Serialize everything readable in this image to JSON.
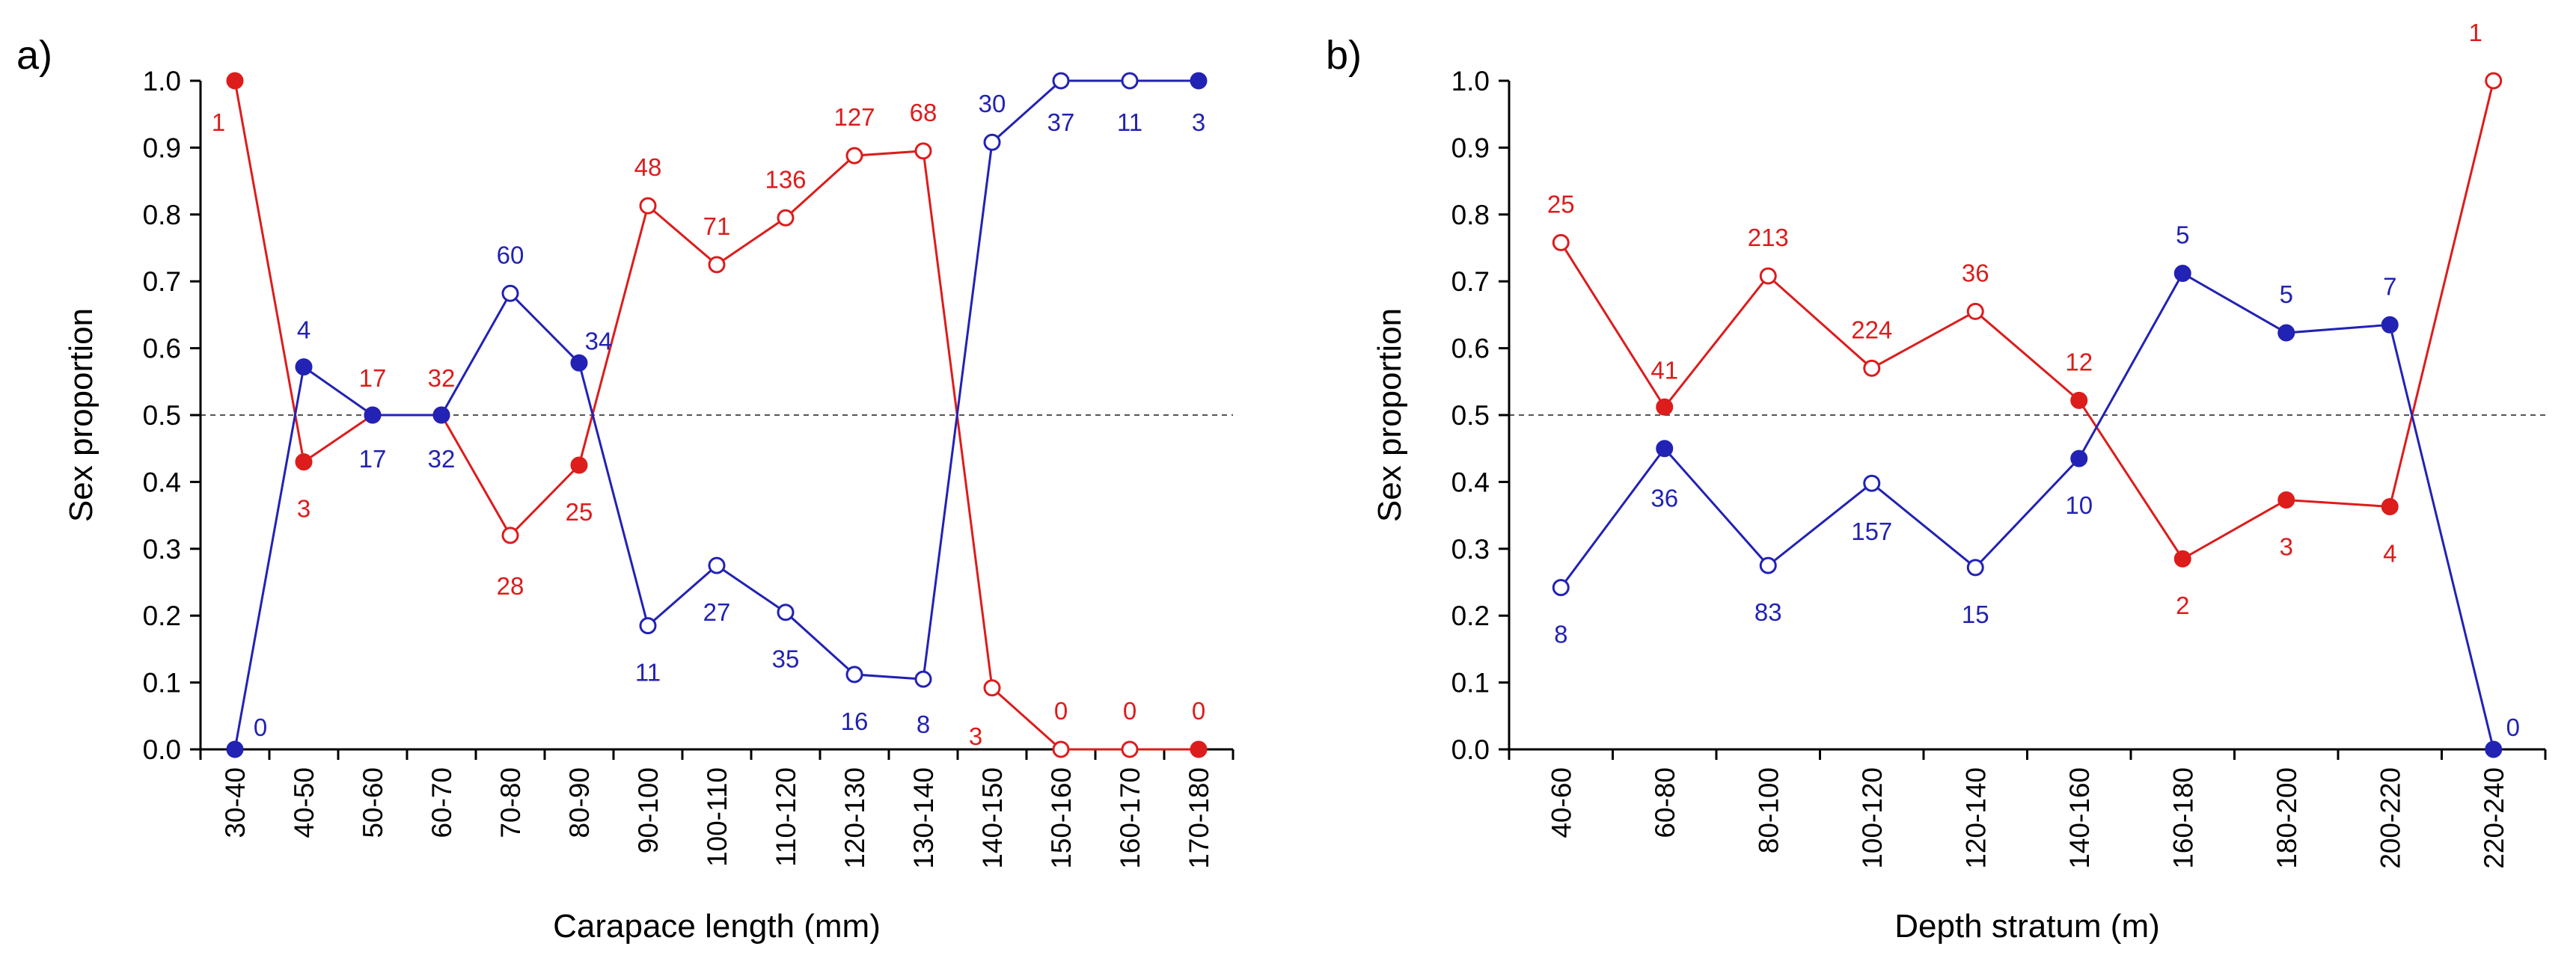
{
  "colors": {
    "female": "#dd1c1c",
    "male": "#2222b4",
    "axis": "#000000",
    "reference": "#555555"
  },
  "chart_data": [
    {
      "type": "line",
      "panel_label": "a)",
      "xlabel": "Carapace length (mm)",
      "ylabel": "Sex proportion",
      "ylim": [
        0,
        1.0
      ],
      "yticks": [
        "0.0",
        "0.1",
        "0.2",
        "0.3",
        "0.4",
        "0.5",
        "0.6",
        "0.7",
        "0.8",
        "0.9",
        "1.0"
      ],
      "reference_line": 0.5,
      "categories": [
        "30-40",
        "40-50",
        "50-60",
        "60-70",
        "70-80",
        "80-90",
        "90-100",
        "100-110",
        "110-120",
        "120-130",
        "130-140",
        "140-150",
        "150-160",
        "160-170",
        "170-180"
      ],
      "series": [
        {
          "name": "red",
          "values": [
            1.0,
            0.43,
            0.5,
            0.5,
            0.32,
            0.425,
            0.813,
            0.725,
            0.795,
            0.888,
            0.895,
            0.092,
            0.0,
            0.0,
            0.0
          ],
          "labels": [
            "1",
            "3",
            "17",
            "32",
            "28",
            "25",
            "48",
            "71",
            "136",
            "127",
            "68",
            "3",
            "0",
            "0",
            "0"
          ],
          "filled": [
            true,
            true,
            true,
            true,
            false,
            true,
            false,
            false,
            false,
            false,
            false,
            false,
            false,
            false,
            true
          ]
        },
        {
          "name": "blue",
          "values": [
            0.0,
            0.572,
            0.5,
            0.5,
            0.682,
            0.578,
            0.185,
            0.275,
            0.205,
            0.112,
            0.105,
            0.908,
            1.0,
            1.0,
            1.0
          ],
          "labels": [
            "0",
            "4",
            "17",
            "32",
            "60",
            "34",
            "11",
            "27",
            "35",
            "16",
            "8",
            "30",
            "37",
            "11",
            "3"
          ],
          "filled": [
            true,
            true,
            true,
            true,
            false,
            true,
            false,
            false,
            false,
            false,
            false,
            false,
            false,
            false,
            true
          ]
        }
      ]
    },
    {
      "type": "line",
      "panel_label": "b)",
      "xlabel": "Depth stratum (m)",
      "ylabel": "Sex proportion",
      "ylim": [
        0,
        1.0
      ],
      "yticks": [
        "0.0",
        "0.1",
        "0.2",
        "0.3",
        "0.4",
        "0.5",
        "0.6",
        "0.7",
        "0.8",
        "0.9",
        "1.0"
      ],
      "reference_line": 0.5,
      "categories": [
        "40-60",
        "60-80",
        "80-100",
        "100-120",
        "120-140",
        "140-160",
        "160-180",
        "180-200",
        "200-220",
        "220-240"
      ],
      "series": [
        {
          "name": "red",
          "values": [
            0.758,
            0.512,
            0.708,
            0.57,
            0.655,
            0.522,
            0.285,
            0.373,
            0.363,
            1.0
          ],
          "labels": [
            "25",
            "41",
            "213",
            "224",
            "36",
            "12",
            "2",
            "3",
            "4",
            "1"
          ],
          "filled": [
            false,
            true,
            false,
            false,
            false,
            true,
            true,
            true,
            true,
            false
          ]
        },
        {
          "name": "blue",
          "values": [
            0.242,
            0.45,
            0.275,
            0.398,
            0.272,
            0.435,
            0.712,
            0.623,
            0.635,
            0.0
          ],
          "labels": [
            "8",
            "36",
            "83",
            "157",
            "15",
            "10",
            "5",
            "5",
            "7",
            "0"
          ],
          "filled": [
            false,
            true,
            false,
            false,
            false,
            true,
            true,
            true,
            true,
            true
          ]
        }
      ]
    }
  ]
}
